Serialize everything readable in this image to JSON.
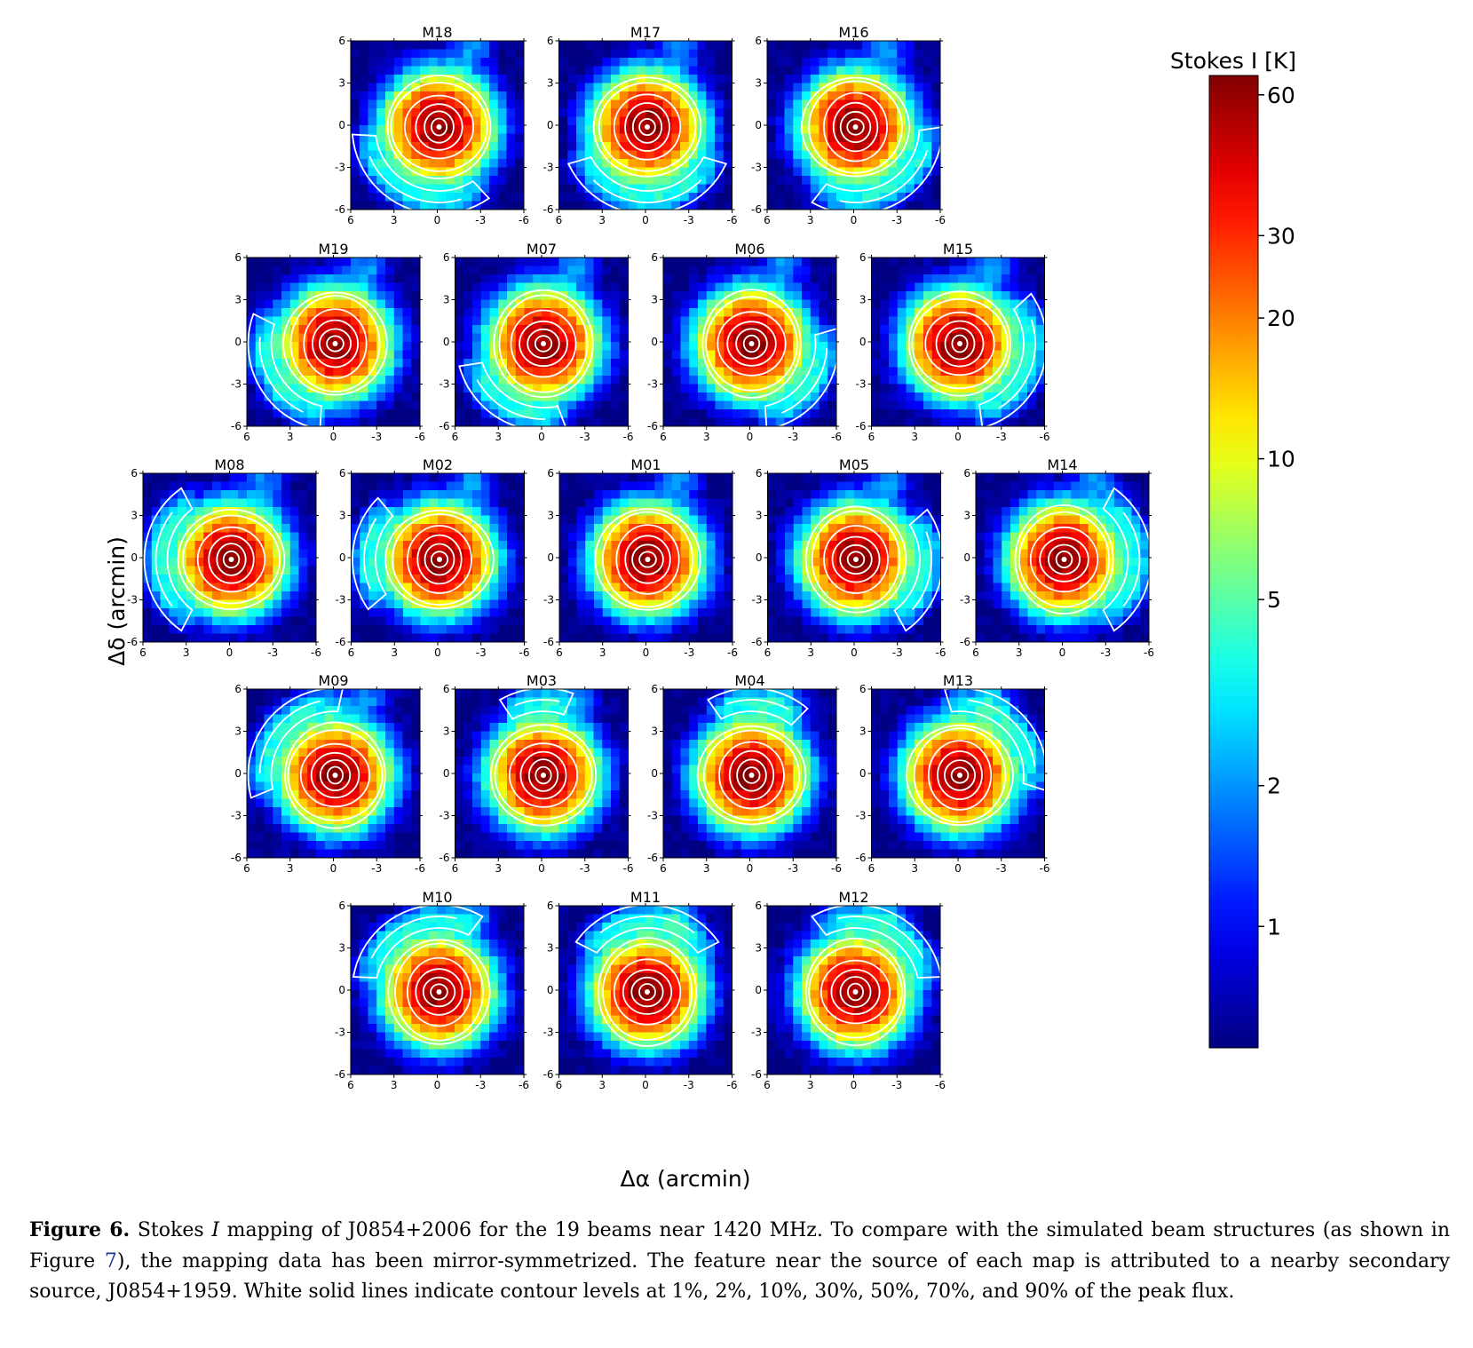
{
  "figure": {
    "colorbar": {
      "label": "Stokes I [K]",
      "ticks": [
        60,
        30,
        20,
        10,
        5,
        2,
        1
      ],
      "scale": "log",
      "range": [
        0.55,
        66
      ],
      "colormap": "jet"
    },
    "axis_tick_labels": [
      "6",
      "3",
      "0",
      "-3",
      "-6"
    ],
    "ylabel": "Δδ (arcmin)",
    "xlabel": "Δα (arcmin)",
    "contour_levels_pct": [
      1,
      2,
      10,
      30,
      50,
      70,
      90
    ],
    "panels": [
      {
        "name": "M18",
        "row": 0,
        "col": 0,
        "lobes": [
          {
            "angle": -115,
            "span": 120
          }
        ]
      },
      {
        "name": "M17",
        "row": 0,
        "col": 1,
        "lobes": [
          {
            "angle": -90,
            "span": 130
          }
        ]
      },
      {
        "name": "M16",
        "row": 0,
        "col": 2,
        "lobes": [
          {
            "angle": -60,
            "span": 120
          }
        ]
      },
      {
        "name": "M19",
        "row": 1,
        "col": 0,
        "lobes": [
          {
            "angle": -150,
            "span": 100
          }
        ]
      },
      {
        "name": "M07",
        "row": 1,
        "col": 1,
        "lobes": [
          {
            "angle": -120,
            "span": 90
          }
        ]
      },
      {
        "name": "M06",
        "row": 1,
        "col": 2,
        "lobes": [
          {
            "angle": -35,
            "span": 90
          }
        ]
      },
      {
        "name": "M15",
        "row": 1,
        "col": 3,
        "lobes": [
          {
            "angle": -20,
            "span": 110
          }
        ]
      },
      {
        "name": "M08",
        "row": 2,
        "col": 0,
        "lobes": [
          {
            "angle": 180,
            "span": 110
          }
        ]
      },
      {
        "name": "M02",
        "row": 2,
        "col": 1,
        "lobes": [
          {
            "angle": 175,
            "span": 80
          }
        ]
      },
      {
        "name": "M01",
        "row": 2,
        "col": 2,
        "lobes": []
      },
      {
        "name": "M05",
        "row": 2,
        "col": 3,
        "lobes": [
          {
            "angle": -10,
            "span": 90
          }
        ]
      },
      {
        "name": "M14",
        "row": 2,
        "col": 4,
        "lobes": [
          {
            "angle": 0,
            "span": 110
          }
        ]
      },
      {
        "name": "M09",
        "row": 3,
        "col": 0,
        "lobes": [
          {
            "angle": 140,
            "span": 110
          }
        ]
      },
      {
        "name": "M03",
        "row": 3,
        "col": 1,
        "lobes": [
          {
            "angle": 95,
            "span": 50
          }
        ]
      },
      {
        "name": "M04",
        "row": 3,
        "col": 2,
        "lobes": [
          {
            "angle": 85,
            "span": 70
          }
        ]
      },
      {
        "name": "M13",
        "row": 3,
        "col": 3,
        "lobes": [
          {
            "angle": 45,
            "span": 110
          }
        ]
      },
      {
        "name": "M10",
        "row": 4,
        "col": 0,
        "lobes": [
          {
            "angle": 115,
            "span": 110
          }
        ]
      },
      {
        "name": "M11",
        "row": 4,
        "col": 1,
        "lobes": [
          {
            "angle": 90,
            "span": 110
          }
        ]
      },
      {
        "name": "M12",
        "row": 4,
        "col": 2,
        "lobes": [
          {
            "angle": 65,
            "span": 110
          }
        ]
      }
    ]
  },
  "caption": {
    "label": "Figure 6.",
    "t1": " Stokes ",
    "italic": "I",
    "t2": " mapping of J0854+2006 for the 19 beams near 1420 MHz. To compare with the simulated beam structures (as shown in Figure ",
    "ref": "7",
    "t3": "), the mapping data has been mirror-symmetrized. The feature near the source of each map is attributed to a nearby secondary source, J0854+1959. White solid lines indicate contour levels at 1%, 2%, 10%, 30%, 50%, 70%, and 90% of the peak flux."
  }
}
